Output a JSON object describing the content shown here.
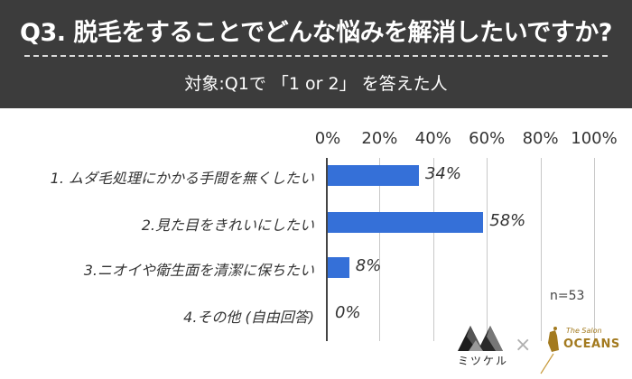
{
  "header": {
    "title": "Q3. 脱毛をすることでどんな悩みを解消したいですか?",
    "subtitle": "対象:Q1で 「1 or 2」 を答えた人"
  },
  "chart_data": {
    "type": "bar",
    "orientation": "horizontal",
    "title": "Q3. 脱毛をすることでどんな悩みを解消したいですか?",
    "subtitle": "対象:Q1で 「1 or 2」 を答えた人",
    "categories": [
      "1. ムダ毛処理にかかる手間を無くしたい",
      "2.見た目をきれいにしたい",
      "3.ニオイや衛生面を清潔に保ちたい",
      "4.その他 (自由回答)"
    ],
    "values": [
      34,
      58,
      8,
      0
    ],
    "value_labels": [
      "34%",
      "58%",
      "8%",
      "0%"
    ],
    "xlabel": "",
    "ylabel": "",
    "xlim": [
      0,
      100
    ],
    "x_ticks": [
      "0%",
      "20%",
      "40%",
      "60%",
      "80%",
      "100%"
    ],
    "x_axis_position": "top",
    "grid": true,
    "legend": null,
    "annotation": "n=53",
    "bar_color": "#3570d8"
  },
  "footer": {
    "n_label": "n=53",
    "logo_left_text": "ミツケル",
    "separator": "×",
    "logo_right_script": "The Salon",
    "logo_right_text": "OCEANS"
  },
  "colors": {
    "header_bg": "#3c3c3c",
    "bar": "#3570d8",
    "gold": "#a37a1f"
  }
}
